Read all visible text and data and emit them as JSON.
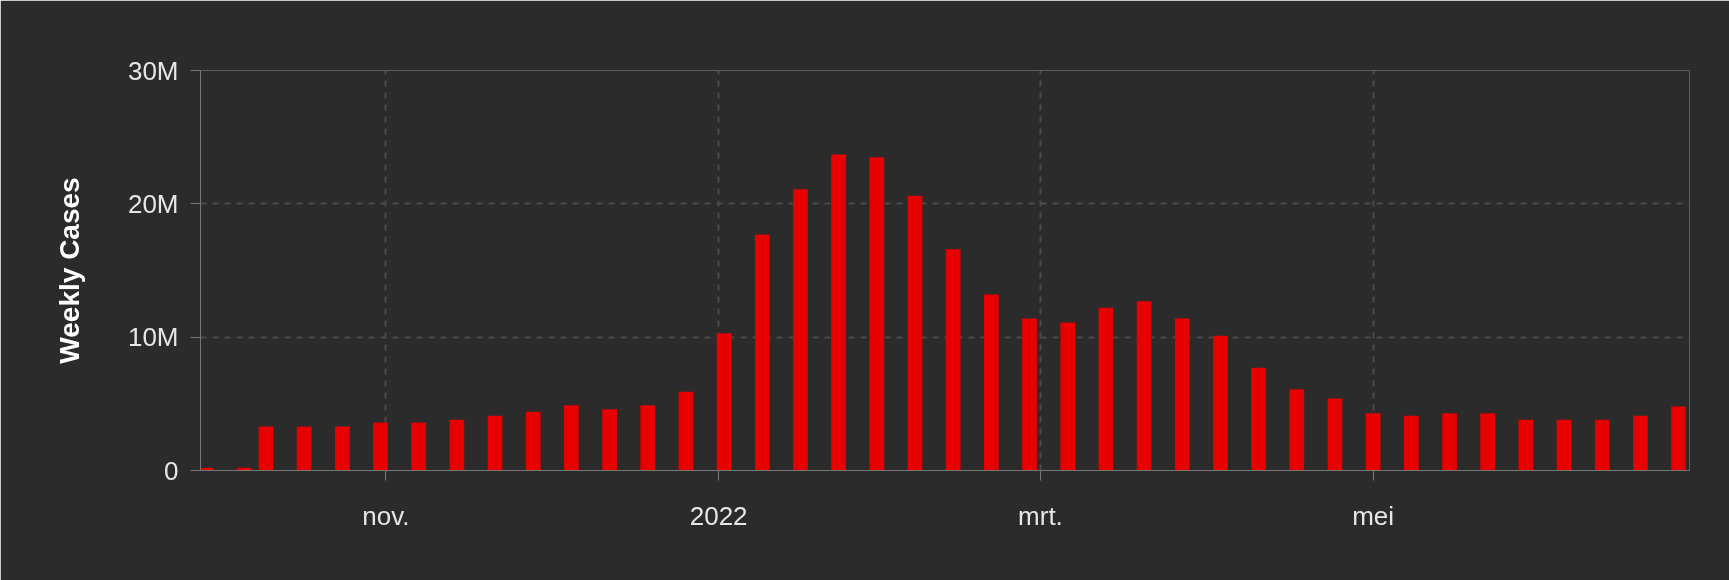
{
  "chart_data": {
    "type": "bar",
    "ylabel": "Weekly Cases",
    "x": [
      "2021-09-29",
      "2021-10-06",
      "2021-10-10",
      "2021-10-17",
      "2021-10-24",
      "2021-10-31",
      "2021-11-07",
      "2021-11-14",
      "2021-11-21",
      "2021-11-28",
      "2021-12-05",
      "2021-12-12",
      "2021-12-19",
      "2021-12-26",
      "2022-01-02",
      "2022-01-09",
      "2022-01-16",
      "2022-01-23",
      "2022-01-30",
      "2022-02-06",
      "2022-02-13",
      "2022-02-20",
      "2022-02-27",
      "2022-03-06",
      "2022-03-13",
      "2022-03-20",
      "2022-03-27",
      "2022-04-03",
      "2022-04-10",
      "2022-04-17",
      "2022-04-24",
      "2022-05-01",
      "2022-05-08",
      "2022-05-15",
      "2022-05-22",
      "2022-05-29",
      "2022-06-05",
      "2022-06-12",
      "2022-06-19",
      "2022-06-26"
    ],
    "series": [
      {
        "color": "#e60000",
        "values": [
          200000,
          200000,
          3300000,
          3300000,
          3300000,
          3600000,
          3600000,
          3800000,
          4100000,
          4400000,
          4900000,
          4600000,
          4900000,
          5900000,
          10300000,
          17700000,
          21100000,
          23700000,
          23500000,
          20600000,
          16600000,
          13200000,
          11400000,
          11100000,
          12200000,
          12700000,
          11400000,
          10100000,
          7700000,
          6100000,
          5400000,
          4300000,
          4100000,
          4300000,
          4300000,
          3800000,
          3800000,
          3800000,
          4100000,
          4800000
        ]
      }
    ],
    "xlim": [
      "2021-09-28",
      "2022-06-28"
    ],
    "xticks": [
      {
        "value": "2021-11-01",
        "label": "nov."
      },
      {
        "value": "2022-01-01",
        "label": "2022"
      },
      {
        "value": "2022-03-01",
        "label": "mrt."
      },
      {
        "value": "2022-05-01",
        "label": "mei"
      }
    ],
    "ylim": [
      0,
      30000000
    ],
    "yticks": [
      {
        "value": 0,
        "label": "0"
      },
      {
        "value": 10000000,
        "label": "10M"
      },
      {
        "value": 20000000,
        "label": "20M"
      },
      {
        "value": 30000000,
        "label": "30M"
      }
    ],
    "grid": true
  }
}
